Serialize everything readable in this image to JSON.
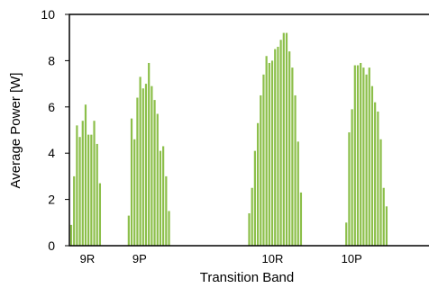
{
  "chart_data": {
    "type": "bar",
    "xlabel": "Transition Band",
    "ylabel": "Average Power [W]",
    "ylim": [
      0,
      10
    ],
    "yticks": [
      0,
      2,
      4,
      6,
      8,
      10
    ],
    "grid": false,
    "legend": "none",
    "bar_color": "#8cbf4a",
    "x_range": [
      0,
      100
    ],
    "group_labels": [
      {
        "label": "9R",
        "x": 5
      },
      {
        "label": "9P",
        "x": 19.5
      },
      {
        "label": "10R",
        "x": 56.5
      },
      {
        "label": "10P",
        "x": 78.5
      }
    ],
    "groups": [
      {
        "name": "9R",
        "x_start": 0.5,
        "step": 0.8,
        "values": [
          0.9,
          3.0,
          5.2,
          4.7,
          5.4,
          6.1,
          4.8,
          4.8,
          5.4,
          4.4,
          2.7
        ]
      },
      {
        "name": "9P",
        "x_start": 16.5,
        "step": 0.8,
        "values": [
          1.3,
          5.5,
          4.6,
          6.4,
          7.3,
          6.8,
          7.0,
          7.9,
          6.9,
          6.3,
          5.7,
          4.1,
          4.3,
          3.0,
          1.5
        ]
      },
      {
        "name": "10R",
        "x_start": 50.0,
        "step": 0.8,
        "values": [
          1.4,
          2.5,
          4.1,
          5.3,
          6.5,
          7.4,
          8.2,
          7.9,
          8.0,
          8.5,
          8.6,
          8.9,
          9.2,
          9.2,
          8.4,
          7.7,
          6.5,
          4.5,
          2.3
        ]
      },
      {
        "name": "10P",
        "x_start": 77.0,
        "step": 0.8,
        "values": [
          1.0,
          4.9,
          5.9,
          7.8,
          7.8,
          7.9,
          7.7,
          7.4,
          7.7,
          6.9,
          6.2,
          5.8,
          4.6,
          2.5,
          1.7
        ]
      }
    ]
  }
}
